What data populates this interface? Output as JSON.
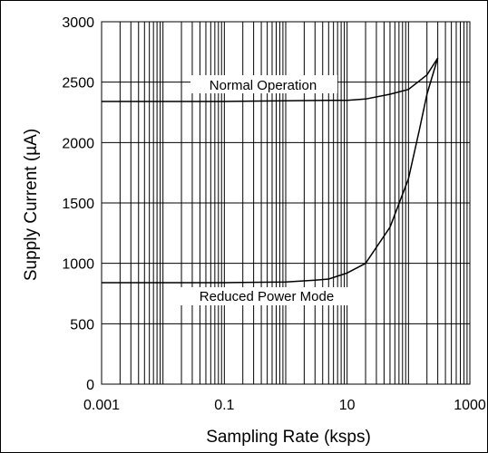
{
  "chart_data": {
    "type": "line",
    "xlabel": "Sampling Rate (ksps)",
    "ylabel": "Supply Current (µA)",
    "x_scale": "log",
    "xlim": [
      0.001,
      1000
    ],
    "ylim": [
      0,
      3000
    ],
    "x_ticks": [
      "0.001",
      "0.1",
      "10",
      "1000"
    ],
    "y_ticks": [
      "0",
      "500",
      "1000",
      "1500",
      "2000",
      "2500",
      "3000"
    ],
    "grid": true,
    "series": [
      {
        "name": "Normal Operation",
        "x": [
          0.001,
          0.01,
          0.1,
          1,
          5,
          10,
          20,
          50,
          100,
          200,
          300
        ],
        "y": [
          2340,
          2340,
          2340,
          2345,
          2350,
          2350,
          2360,
          2400,
          2440,
          2560,
          2700
        ]
      },
      {
        "name": "Reduced Power Mode",
        "x": [
          0.001,
          0.01,
          0.1,
          1,
          3,
          5,
          10,
          20,
          50,
          100,
          150,
          200,
          300
        ],
        "y": [
          840,
          840,
          840,
          845,
          860,
          870,
          920,
          1000,
          1300,
          1700,
          2100,
          2400,
          2700
        ]
      }
    ],
    "annotations": [
      "Normal Operation",
      "Reduced Power Mode"
    ],
    "line_color": "#000000",
    "background_color": "#ffffff"
  }
}
